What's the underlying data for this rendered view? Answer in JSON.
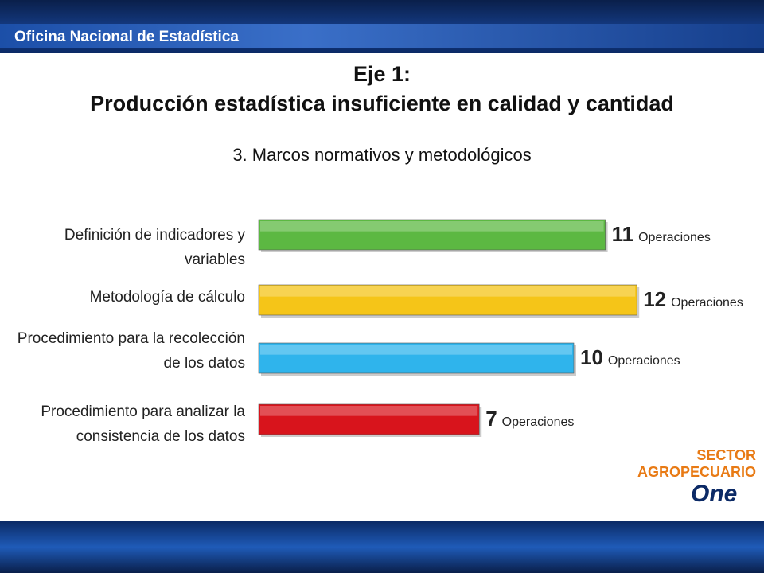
{
  "header": {
    "title": "Oficina Nacional de Estadística"
  },
  "logo": {
    "line1": "SECTOR",
    "line2": "AGROPECUARIO",
    "brand": "One"
  },
  "chart_data": {
    "type": "hbar",
    "title": "Eje 1:",
    "subtitle": "Producción estadística insuficiente en calidad y cantidad",
    "chart_title": "3. Marcos normativos y metodológicos",
    "categories": [
      "Definición de indicadores y variables",
      "Metodología de cálculo",
      "Procedimiento para la recolección de los datos",
      "Procedimiento para analizar la consistencia de los datos"
    ],
    "values": [
      11,
      12,
      10,
      7
    ],
    "colors": [
      "#5cb842",
      "#f5c518",
      "#2fb4ec",
      "#d8141c"
    ],
    "value_suffix": "Operaciones"
  }
}
